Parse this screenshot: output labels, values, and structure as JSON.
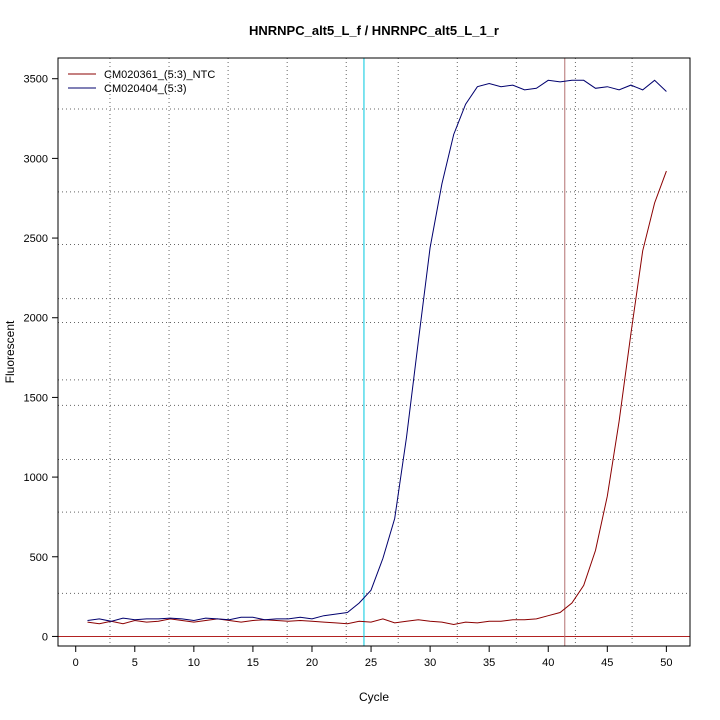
{
  "chart_data": {
    "type": "line",
    "title": "HNRNPC_alt5_L_f / HNRNPC_alt5_L_1_r",
    "xlabel": "Cycle",
    "ylabel": "Fluorescent",
    "xlim": [
      -1.5,
      52
    ],
    "ylim": [
      -60,
      3630
    ],
    "x_ticks": [
      0,
      5,
      10,
      15,
      20,
      25,
      30,
      35,
      40,
      45,
      50
    ],
    "y_ticks": [
      0,
      500,
      1000,
      1500,
      2000,
      2500,
      3000,
      3500
    ],
    "grid": true,
    "legend_position": "top-left",
    "threshold": 0,
    "threshold_color": "#b22222",
    "vlines": [
      {
        "x": 24.4,
        "color": "#00c8e0"
      },
      {
        "x": 41.4,
        "color": "#b27070"
      }
    ],
    "grid_x": [
      2.9,
      7.9,
      12.9,
      17.9,
      22.9,
      27.3,
      32.3,
      37.3,
      42.3,
      47.1
    ],
    "grid_y": [
      270,
      780,
      1110,
      1450,
      1610,
      1970,
      2120,
      2460,
      2790,
      3310
    ],
    "x": [
      1,
      2,
      3,
      4,
      5,
      6,
      7,
      8,
      9,
      10,
      11,
      12,
      13,
      14,
      15,
      16,
      17,
      18,
      19,
      20,
      21,
      22,
      23,
      24,
      25,
      26,
      27,
      28,
      29,
      30,
      31,
      32,
      33,
      34,
      35,
      36,
      37,
      38,
      39,
      40,
      41,
      42,
      43,
      44,
      45,
      46,
      47,
      48,
      49,
      50
    ],
    "series": [
      {
        "name": "CM020361_(5:3)_NTC",
        "color": "#8b0000",
        "values": [
          90,
          80,
          95,
          80,
          100,
          90,
          95,
          110,
          100,
          90,
          100,
          110,
          100,
          90,
          100,
          105,
          100,
          95,
          100,
          95,
          90,
          85,
          80,
          95,
          90,
          110,
          85,
          95,
          105,
          95,
          90,
          75,
          90,
          85,
          95,
          95,
          105,
          105,
          110,
          130,
          150,
          210,
          320,
          540,
          880,
          1350,
          1900,
          2420,
          2720,
          2920
        ]
      },
      {
        "name": "CM020404_(5:3)",
        "color": "#00006e",
        "values": [
          100,
          110,
          95,
          115,
          105,
          110,
          110,
          115,
          110,
          100,
          115,
          110,
          105,
          120,
          120,
          105,
          110,
          110,
          120,
          110,
          130,
          140,
          150,
          210,
          290,
          490,
          740,
          1250,
          1850,
          2440,
          2840,
          3150,
          3340,
          3450,
          3470,
          3450,
          3460,
          3430,
          3440,
          3490,
          3480,
          3490,
          3490,
          3440,
          3450,
          3430,
          3460,
          3430,
          3490,
          3420
        ]
      }
    ]
  }
}
